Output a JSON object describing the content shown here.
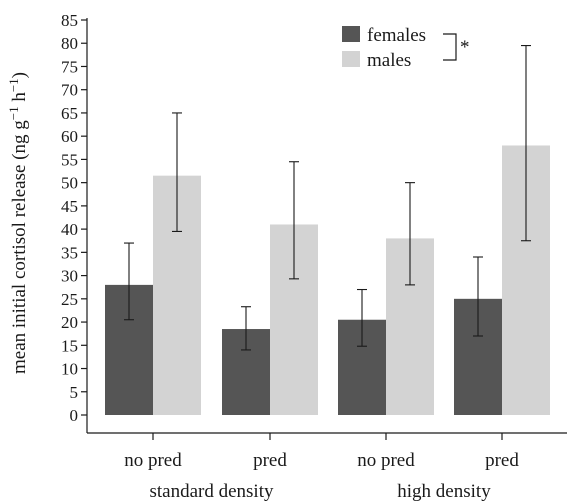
{
  "chart_data": {
    "type": "bar",
    "ylabel": "mean initial cortisol release (ng g",
    "ylabel_sup1": "−1",
    "ylabel_mid": " h",
    "ylabel_sup2": "−1",
    "ylabel_end": ")",
    "yticks": [
      0,
      5,
      10,
      15,
      20,
      25,
      30,
      35,
      40,
      45,
      50,
      55,
      60,
      65,
      70,
      75,
      80,
      85
    ],
    "ylim": [
      0,
      85
    ],
    "categories": [
      "no pred",
      "pred",
      "no pred",
      "pred"
    ],
    "groups": [
      {
        "label": "standard density",
        "categories": [
          0,
          1
        ]
      },
      {
        "label": "high density",
        "categories": [
          2,
          3
        ]
      }
    ],
    "series": [
      {
        "name": "females",
        "color": "#555555",
        "values": [
          28,
          18.5,
          20.5,
          25
        ],
        "err_low": [
          20.5,
          14,
          14.8,
          17
        ],
        "err_high": [
          37,
          23.3,
          27,
          34
        ]
      },
      {
        "name": "males",
        "color": "#d3d3d3",
        "values": [
          51.5,
          41,
          38,
          58
        ],
        "err_low": [
          39.5,
          29.3,
          28,
          37.5
        ],
        "err_high": [
          65,
          54.5,
          50,
          79.5
        ]
      }
    ],
    "legend_position": "top-right",
    "significance_marker": "*",
    "grid": false
  }
}
